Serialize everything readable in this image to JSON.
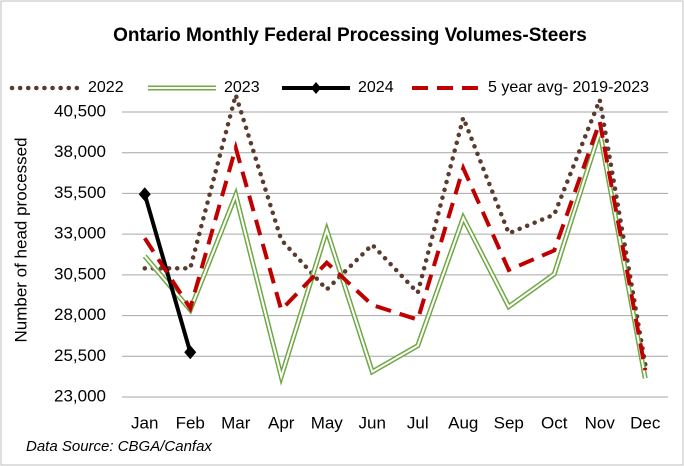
{
  "chart_data": {
    "type": "line",
    "title": "Ontario Monthly Federal  Processing Volumes-Steers",
    "y_label": "Number of head processed",
    "source": "Data Source: CBGA/Canfax",
    "categories": [
      "Jan",
      "Feb",
      "Mar",
      "Apr",
      "May",
      "Jun",
      "Jul",
      "Aug",
      "Sep",
      "Oct",
      "Nov",
      "Dec"
    ],
    "ylim": [
      23000,
      41000
    ],
    "yticks": [
      {
        "value": 23000,
        "label": "23,000"
      },
      {
        "value": 25500,
        "label": "25,500"
      },
      {
        "value": 28000,
        "label": "28,000"
      },
      {
        "value": 30500,
        "label": "30,500"
      },
      {
        "value": 33000,
        "label": "33,000"
      },
      {
        "value": 35500,
        "label": "35,500"
      },
      {
        "value": 38000,
        "label": "38,000"
      },
      {
        "value": 40500,
        "label": "40,500"
      }
    ],
    "grid": true,
    "legend": "top",
    "series": [
      {
        "name": "2022",
        "color": "#5b3b2e",
        "style": "dotted",
        "values": [
          30900,
          30900,
          41550,
          32650,
          29600,
          32350,
          29400,
          40150,
          33050,
          34200,
          41250,
          25000
        ]
      },
      {
        "name": "2023",
        "color": "#70a845",
        "style": "double",
        "values": [
          31650,
          28350,
          35400,
          24250,
          33250,
          24550,
          26150,
          34000,
          28550,
          30550,
          39300,
          24150
        ]
      },
      {
        "name": "2024",
        "color": "#000000",
        "style": "solid",
        "marker": "diamond",
        "values": [
          35450,
          25750,
          null,
          null,
          null,
          null,
          null,
          null,
          null,
          null,
          null,
          null
        ]
      },
      {
        "name": "5 year avg- 2019-2023",
        "color": "#c00000",
        "style": "dashed",
        "values": [
          32750,
          28450,
          38300,
          28350,
          31250,
          28650,
          27750,
          37050,
          30800,
          32000,
          39900,
          24650
        ]
      }
    ]
  }
}
